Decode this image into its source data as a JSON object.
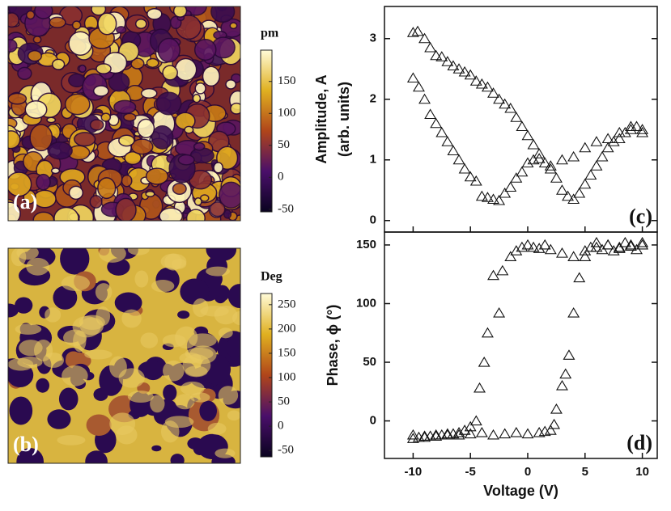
{
  "images": [
    {
      "label": "(a)",
      "colorbar": {
        "title": "pm",
        "lim": [
          -54,
          199
        ],
        "ticks": [
          -50,
          0,
          50,
          100,
          150
        ]
      }
    },
    {
      "label": "(b)",
      "colorbar": {
        "title": "Deg",
        "lim": [
          -63,
          273
        ],
        "ticks": [
          -50,
          0,
          50,
          100,
          150,
          200,
          250
        ]
      }
    }
  ],
  "chart_data": [
    {
      "type": "scatter",
      "label": "(c)",
      "ylabel": [
        "Amplitude, A",
        "(arb. units)"
      ],
      "x": [
        -10,
        -9.6,
        -9,
        -8.5,
        -8,
        -7.5,
        -7,
        -6.5,
        -6,
        -5.5,
        -5,
        -4.5,
        -4,
        -3.5,
        -3,
        -2.5,
        -2,
        -1.5,
        -1,
        -0.5,
        0,
        0.5,
        1,
        1.5,
        2,
        2.5,
        3,
        3.5,
        4,
        4.5,
        5,
        5.5,
        6,
        6.5,
        7,
        7.5,
        8,
        8.5,
        9,
        9.5,
        10,
        -10,
        -9.5,
        -9,
        -8.5,
        -8,
        -7.5,
        -7,
        -6.5,
        -6,
        -5.5,
        -5,
        -4.5,
        -4,
        -3.5,
        -3,
        -2.5,
        -2,
        -1.5,
        -1,
        -0.5,
        0,
        0.5,
        1,
        2,
        3,
        4,
        5,
        6,
        7,
        8,
        9,
        10
      ],
      "values": [
        3.1,
        3.12,
        3.0,
        2.85,
        2.72,
        2.7,
        2.62,
        2.55,
        2.5,
        2.45,
        2.4,
        2.3,
        2.25,
        2.2,
        2.1,
        2.0,
        1.92,
        1.85,
        1.7,
        1.55,
        1.4,
        1.25,
        1.1,
        0.95,
        0.85,
        0.7,
        0.5,
        0.4,
        0.35,
        0.45,
        0.6,
        0.75,
        0.9,
        1.05,
        1.2,
        1.3,
        1.35,
        1.45,
        1.5,
        1.55,
        1.5,
        2.35,
        2.2,
        2.0,
        1.75,
        1.6,
        1.45,
        1.3,
        1.15,
        1.0,
        0.85,
        0.72,
        0.65,
        0.4,
        0.38,
        0.35,
        0.33,
        0.45,
        0.55,
        0.7,
        0.8,
        0.95,
        1.0,
        1.02,
        0.9,
        1.0,
        1.05,
        1.2,
        1.3,
        1.35,
        1.45,
        1.55,
        1.45
      ],
      "xlim": [
        -12.5,
        11.3
      ],
      "ylim": [
        -0.19,
        3.53
      ],
      "yticks": [
        0,
        1,
        2,
        3
      ]
    },
    {
      "type": "scatter",
      "label": "(d)",
      "ylabel": [
        "Phase, ϕ (°)"
      ],
      "xlabel": "Voltage (V)",
      "x": [
        -10,
        -9.5,
        -9,
        -8.5,
        -8,
        -7.5,
        -7,
        -6.5,
        -6,
        -5.5,
        -5,
        -4.5,
        -4.2,
        -3.8,
        -3.5,
        -3,
        -2.5,
        -2.2,
        -1.5,
        -1,
        -0.5,
        0,
        0.5,
        1,
        1.5,
        2,
        3,
        4,
        5,
        6,
        7,
        8,
        9,
        10,
        -10,
        -9,
        -8,
        -7,
        -6,
        -5,
        -4,
        -3,
        -2,
        -1,
        0,
        1,
        1.5,
        2,
        2.3,
        2.5,
        3,
        3.3,
        3.6,
        4,
        4.5,
        5,
        5.5,
        6,
        6.5,
        7,
        7.5,
        8,
        8.5,
        9,
        9.5,
        10
      ],
      "values": [
        -15,
        -14,
        -14,
        -13,
        -13,
        -12,
        -12,
        -11,
        -10,
        -8,
        -5,
        0,
        28,
        50,
        75,
        124,
        92,
        128,
        140,
        145,
        148,
        150,
        148,
        147,
        150,
        146,
        143,
        140,
        145,
        148,
        150,
        147,
        149,
        150,
        -12,
        -13,
        -12,
        -11,
        -12,
        -11,
        -10,
        -12,
        -11,
        -10,
        -11,
        -10,
        -9,
        -8,
        -3,
        10,
        30,
        40,
        56,
        92,
        122,
        140,
        148,
        152,
        146,
        150,
        145,
        148,
        152,
        150,
        146,
        152
      ],
      "xlim": [
        -12.5,
        11.3
      ],
      "ylim": [
        -32,
        161
      ],
      "xticks": [
        -10,
        -5,
        0,
        5,
        10
      ],
      "yticks": [
        0,
        50,
        100,
        150
      ]
    }
  ]
}
